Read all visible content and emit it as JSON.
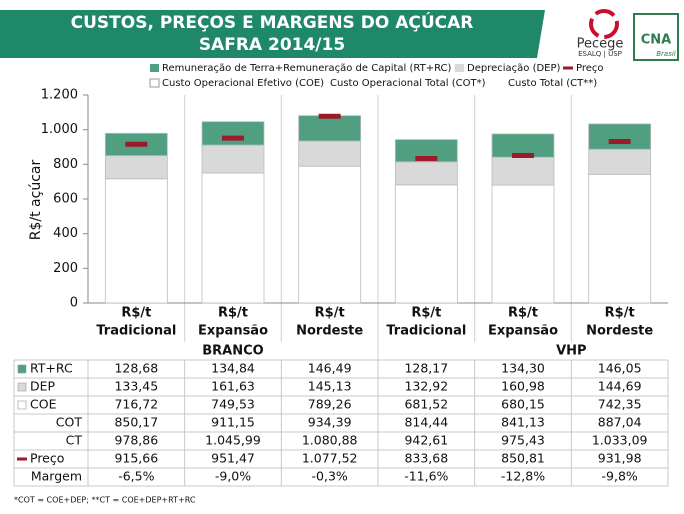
{
  "header": {
    "title_lines": [
      "CUSTOS, PREÇOS E MARGENS DO AÇÚCAR",
      "SAFRA 2014/15"
    ],
    "logos": [
      "Pecege",
      "ESALQ | USP",
      "CNA",
      "Brasil"
    ]
  },
  "chart_data": {
    "type": "bar",
    "stacked": true,
    "ylabel": "R$/t açúcar",
    "categories": [
      [
        "R$/t",
        "Tradicional"
      ],
      [
        "R$/t",
        "Expansão"
      ],
      [
        "R$/t",
        "Nordeste"
      ],
      [
        "R$/t",
        "Tradicional"
      ],
      [
        "R$/t",
        "Expansão"
      ],
      [
        "R$/t",
        "Nordeste"
      ]
    ],
    "groups": [
      "BRANCO",
      "VHP"
    ],
    "ylim": [
      0,
      1200
    ],
    "yticks": [
      0,
      200,
      400,
      600,
      800,
      {
        "value": 1000,
        "label": "1.000"
      },
      {
        "value": 1200,
        "label": "1.200"
      }
    ],
    "series": [
      {
        "name": "Remuneração de Terra+Remuneração de Capital (RT+RC)",
        "label": "RT+RC",
        "type": "bar",
        "color": "#4f9f80",
        "values": [
          128.68,
          134.84,
          146.49,
          128.17,
          134.3,
          146.05
        ],
        "value_labels": [
          "128,68",
          "134,84",
          "146,49",
          "128,17",
          "134,30",
          "146,05"
        ]
      },
      {
        "name": "Depreciação (DEP)",
        "label": "DEP",
        "type": "bar",
        "color": "#d9d9d9",
        "values": [
          133.45,
          161.63,
          145.13,
          132.92,
          160.98,
          144.69
        ],
        "value_labels": [
          "133,45",
          "161,63",
          "145,13",
          "132,92",
          "160,98",
          "144,69"
        ]
      },
      {
        "name": "Custo Operacional Efetivo (COE)",
        "label": "COE",
        "type": "bar",
        "color": "#ffffff",
        "values": [
          716.72,
          749.53,
          789.26,
          681.52,
          680.15,
          742.35
        ],
        "value_labels": [
          "716,72",
          "749,53",
          "789,26",
          "681,52",
          "680,15",
          "742,35"
        ]
      },
      {
        "name": "Preço",
        "label": "Preço",
        "type": "marker",
        "color": "#9b1b2a",
        "values": [
          915.66,
          951.47,
          1077.52,
          833.68,
          850.81,
          931.98
        ],
        "value_labels": [
          "915,66",
          "951,47",
          "1.077,52",
          "833,68",
          "850,81",
          "931,98"
        ]
      }
    ],
    "legend_extra": [
      "Custo Operacional Total (COT*)",
      "Custo Total (CT**)"
    ],
    "table_rows": [
      {
        "label": "COT",
        "cells": [
          "850,17",
          "911,15",
          "934,39",
          "814,44",
          "841,13",
          "887,04"
        ]
      },
      {
        "label": "CT",
        "cells": [
          "978,86",
          "1.045,99",
          "1.080,88",
          "942,61",
          "975,43",
          "1.033,09"
        ]
      },
      {
        "label": "Margem",
        "cells": [
          "-6,5%",
          "-9,0%",
          "-0,3%",
          "-11,6%",
          "-12,8%",
          "-9,8%"
        ]
      }
    ],
    "footnote": "*COT = COE+DEP; **CT = COE+DEP+RT+RC"
  }
}
